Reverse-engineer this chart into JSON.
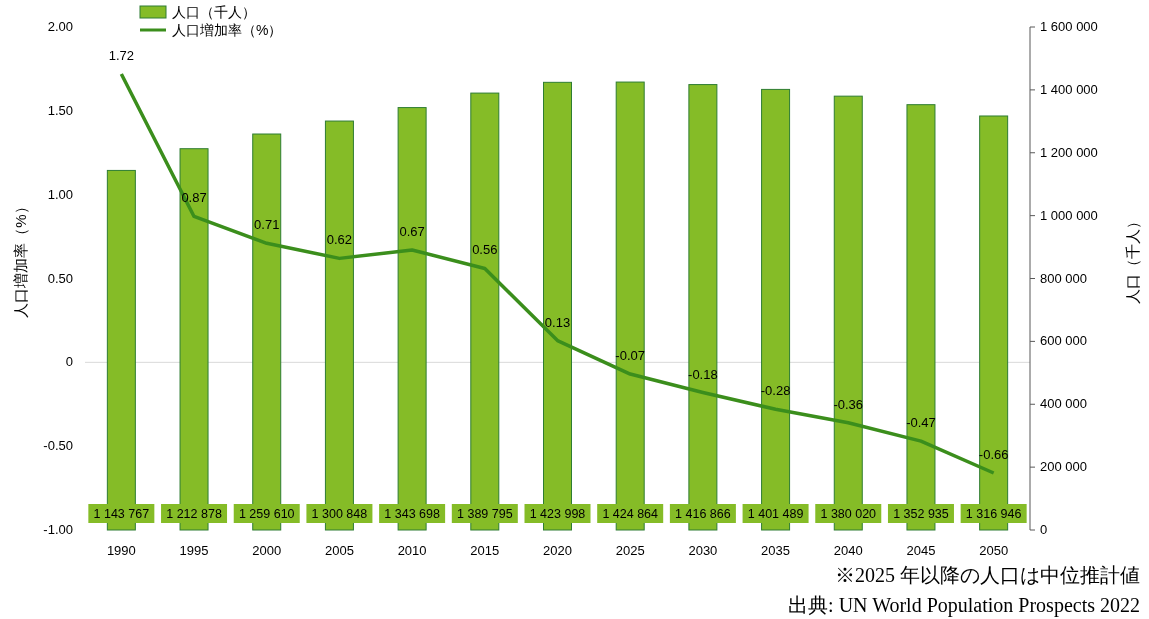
{
  "chart_data": {
    "type": "bar",
    "categories": [
      "1990",
      "1995",
      "2000",
      "2005",
      "2010",
      "2015",
      "2020",
      "2025",
      "2030",
      "2035",
      "2040",
      "2045",
      "2050"
    ],
    "ylabel": "人口増加率（%）",
    "y2label": "人口（千人）",
    "ylim": [
      -1,
      2
    ],
    "yticks": [
      {
        "value": -1,
        "label": "-1.00"
      },
      {
        "value": -0.5,
        "label": "-0.50"
      },
      0,
      {
        "value": 0.5,
        "label": "0.50"
      },
      {
        "value": 1,
        "label": "1.00"
      },
      {
        "value": 1.5,
        "label": "1.50"
      },
      {
        "value": 2,
        "label": "2.00"
      }
    ],
    "y2lim": [
      0,
      1600000
    ],
    "y2ticks": [
      0,
      {
        "value": 200000,
        "label": "200 000"
      },
      {
        "value": 400000,
        "label": "400 000"
      },
      {
        "value": 600000,
        "label": "600 000"
      },
      {
        "value": 800000,
        "label": "800 000"
      },
      {
        "value": 1000000,
        "label": "1 000 000"
      },
      {
        "value": 1200000,
        "label": "1 200 000"
      },
      {
        "value": 1400000,
        "label": "1 400 000"
      },
      {
        "value": 1600000,
        "label": "1 600 000"
      }
    ],
    "series": [
      {
        "name": "人口（千人）",
        "type": "bar",
        "axis": "y2",
        "color": "#85bc27",
        "values": [
          1143767,
          1212878,
          1259610,
          1300848,
          1343698,
          1389795,
          1423998,
          1424864,
          1416866,
          1401489,
          1380020,
          1352935,
          1316946
        ],
        "value_labels": [
          "1 143 767",
          "1 212 878",
          "1 259 610",
          "1 300 848",
          "1 343 698",
          "1 389 795",
          "1 423 998",
          "1 424 864",
          "1 416 866",
          "1 401 489",
          "1 380 020",
          "1 352 935",
          "1 316 946"
        ]
      },
      {
        "name": "人口増加率（%）",
        "type": "line",
        "color": "#3b8e1c",
        "values": [
          1.72,
          0.87,
          0.71,
          0.62,
          0.67,
          0.56,
          0.13,
          -0.07,
          -0.18,
          -0.28,
          -0.36,
          -0.47,
          -0.66
        ],
        "value_labels": [
          "1.72",
          "0.87",
          "0.71",
          "0.62",
          "0.67",
          "0.56",
          "0.13",
          "-0.07",
          "-0.18",
          "-0.28",
          "-0.36",
          "-0.47",
          "-0.66"
        ]
      }
    ],
    "ref_lines": [
      {
        "axis": "y",
        "value": 0,
        "color": "#d9d9d9"
      }
    ],
    "legend": "top left",
    "grid": false,
    "annotations": [
      "※2025 年以降の人口は中位推計値",
      "出典: UN World Population Prospects 2022"
    ]
  }
}
